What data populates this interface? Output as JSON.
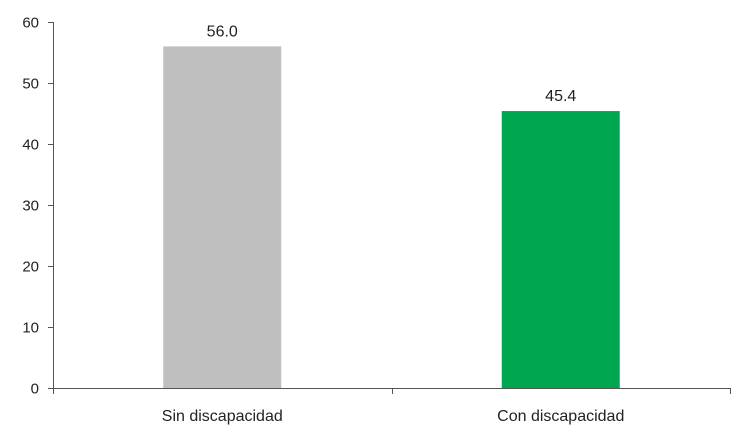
{
  "chart_data": {
    "type": "bar",
    "title": "",
    "xlabel": "",
    "ylabel": "",
    "categories": [
      "Sin discapacidad",
      "Con discapacidad"
    ],
    "values": [
      56.0,
      45.4
    ],
    "value_labels": [
      "56.0",
      "45.4"
    ],
    "bar_colors": [
      "#bfbfbf",
      "#00a650"
    ],
    "ylim": [
      0,
      60
    ],
    "y_ticks": [
      0,
      10,
      20,
      30,
      40,
      50,
      60
    ],
    "y_tick_labels": [
      "0",
      "10",
      "20",
      "30",
      "40",
      "50",
      "60"
    ],
    "grid": false,
    "legend": "none"
  }
}
